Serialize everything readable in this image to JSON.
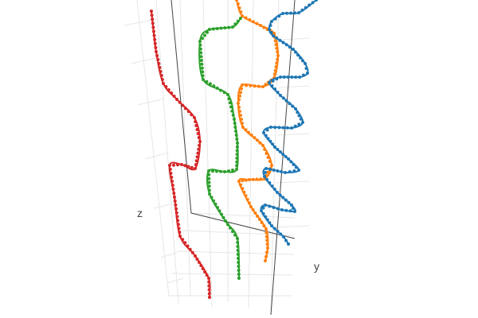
{
  "chart_data": {
    "type": "scatter3d",
    "mode": "lines+markers",
    "axis_labels": {
      "x": "",
      "y": "y",
      "z": "z"
    },
    "grid": true,
    "legend": "none",
    "series": [
      {
        "color": "#d62728",
        "points": [
          [
            190,
            14
          ],
          [
            196,
            65
          ],
          [
            205,
            105
          ],
          [
            222,
            125
          ],
          [
            244,
            148
          ],
          [
            251,
            178
          ],
          [
            245,
            212
          ],
          [
            228,
            207
          ],
          [
            213,
            208
          ],
          [
            219,
            248
          ],
          [
            226,
            297
          ],
          [
            245,
            322
          ],
          [
            262,
            350
          ],
          [
            263,
            374
          ]
        ]
      },
      {
        "color": "#2ca02c",
        "points": [
          [
            302,
            23
          ],
          [
            292,
            34
          ],
          [
            263,
            37
          ],
          [
            251,
            52
          ],
          [
            255,
            100
          ],
          [
            286,
            119
          ],
          [
            294,
            150
          ],
          [
            298,
            180
          ],
          [
            297,
            213
          ],
          [
            282,
            216
          ],
          [
            262,
            215
          ],
          [
            263,
            244
          ],
          [
            283,
            278
          ],
          [
            298,
            300
          ],
          [
            300,
            350
          ]
        ]
      },
      {
        "color": "#ff7f0e",
        "points": [
          [
            297,
            0
          ],
          [
            304,
            20
          ],
          [
            327,
            32
          ],
          [
            344,
            42
          ],
          [
            349,
            70
          ],
          [
            344,
            98
          ],
          [
            330,
            109
          ],
          [
            304,
            107
          ],
          [
            299,
            130
          ],
          [
            305,
            160
          ],
          [
            330,
            183
          ],
          [
            341,
            208
          ],
          [
            332,
            225
          ],
          [
            313,
            226
          ],
          [
            300,
            228
          ],
          [
            315,
            260
          ],
          [
            334,
            288
          ],
          [
            336,
            312
          ],
          [
            333,
            328
          ]
        ]
      },
      {
        "color": "#1f77b4",
        "points": [
          [
            397,
            0
          ],
          [
            375,
            16
          ],
          [
            355,
            17
          ],
          [
            341,
            27
          ],
          [
            338,
            37
          ],
          [
            343,
            45
          ],
          [
            368,
            62
          ],
          [
            383,
            80
          ],
          [
            386,
            92
          ],
          [
            376,
            97
          ],
          [
            352,
            97
          ],
          [
            338,
            104
          ],
          [
            352,
            120
          ],
          [
            371,
            137
          ],
          [
            380,
            154
          ],
          [
            366,
            161
          ],
          [
            340,
            160
          ],
          [
            331,
            167
          ],
          [
            345,
            185
          ],
          [
            362,
            200
          ],
          [
            375,
            214
          ],
          [
            358,
            217
          ],
          [
            334,
            212
          ],
          [
            332,
            222
          ],
          [
            348,
            242
          ],
          [
            366,
            258
          ],
          [
            370,
            266
          ],
          [
            354,
            264
          ],
          [
            333,
            258
          ],
          [
            328,
            265
          ],
          [
            341,
            284
          ],
          [
            356,
            298
          ],
          [
            362,
            307
          ]
        ]
      }
    ]
  }
}
